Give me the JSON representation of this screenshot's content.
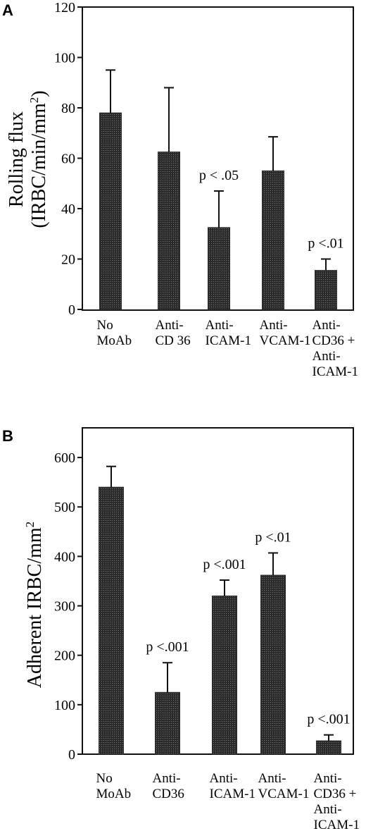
{
  "chart_data": [
    {
      "panel": "A",
      "type": "bar",
      "ylabel_lines": [
        "Rolling flux",
        "(IRBC/min/mm",
        "2",
        ")"
      ],
      "categories": [
        [
          "No",
          "MoAb"
        ],
        [
          "Anti-",
          "CD 36"
        ],
        [
          "Anti-",
          "ICAM-1"
        ],
        [
          "Anti-",
          "VCAM-1"
        ],
        [
          "Anti-",
          "CD36 +",
          "Anti-",
          "ICAM-1"
        ]
      ],
      "values": [
        78,
        62.5,
        32.5,
        55,
        15.5
      ],
      "errors": [
        17,
        25.5,
        14.5,
        13.5,
        4.5
      ],
      "annotations": [
        "",
        "",
        "p < .05",
        "",
        "p <.01"
      ],
      "yticks": [
        0,
        20,
        40,
        60,
        80,
        100,
        120
      ],
      "ylim": [
        0,
        120
      ]
    },
    {
      "panel": "B",
      "type": "bar",
      "ylabel_lines": [
        "Adherent IRBC/mm",
        "2"
      ],
      "categories": [
        [
          "No",
          "MoAb"
        ],
        [
          "Anti-",
          "CD36"
        ],
        [
          "Anti-",
          "ICAM-1"
        ],
        [
          "Anti-",
          "VCAM-1"
        ],
        [
          "Anti-",
          "CD36 +",
          "Anti-",
          "ICAM-1"
        ]
      ],
      "values": [
        540,
        125,
        320,
        362,
        27
      ],
      "errors": [
        42,
        60,
        32,
        45,
        12
      ],
      "annotations": [
        "",
        "p <.001",
        "p <.001",
        "p <.01",
        "p <.001"
      ],
      "yticks": [
        0,
        100,
        200,
        300,
        400,
        500,
        600
      ],
      "ylim": [
        0,
        660
      ]
    }
  ],
  "colors": {
    "bar": "#2b2b2b",
    "axis": "#111111"
  }
}
